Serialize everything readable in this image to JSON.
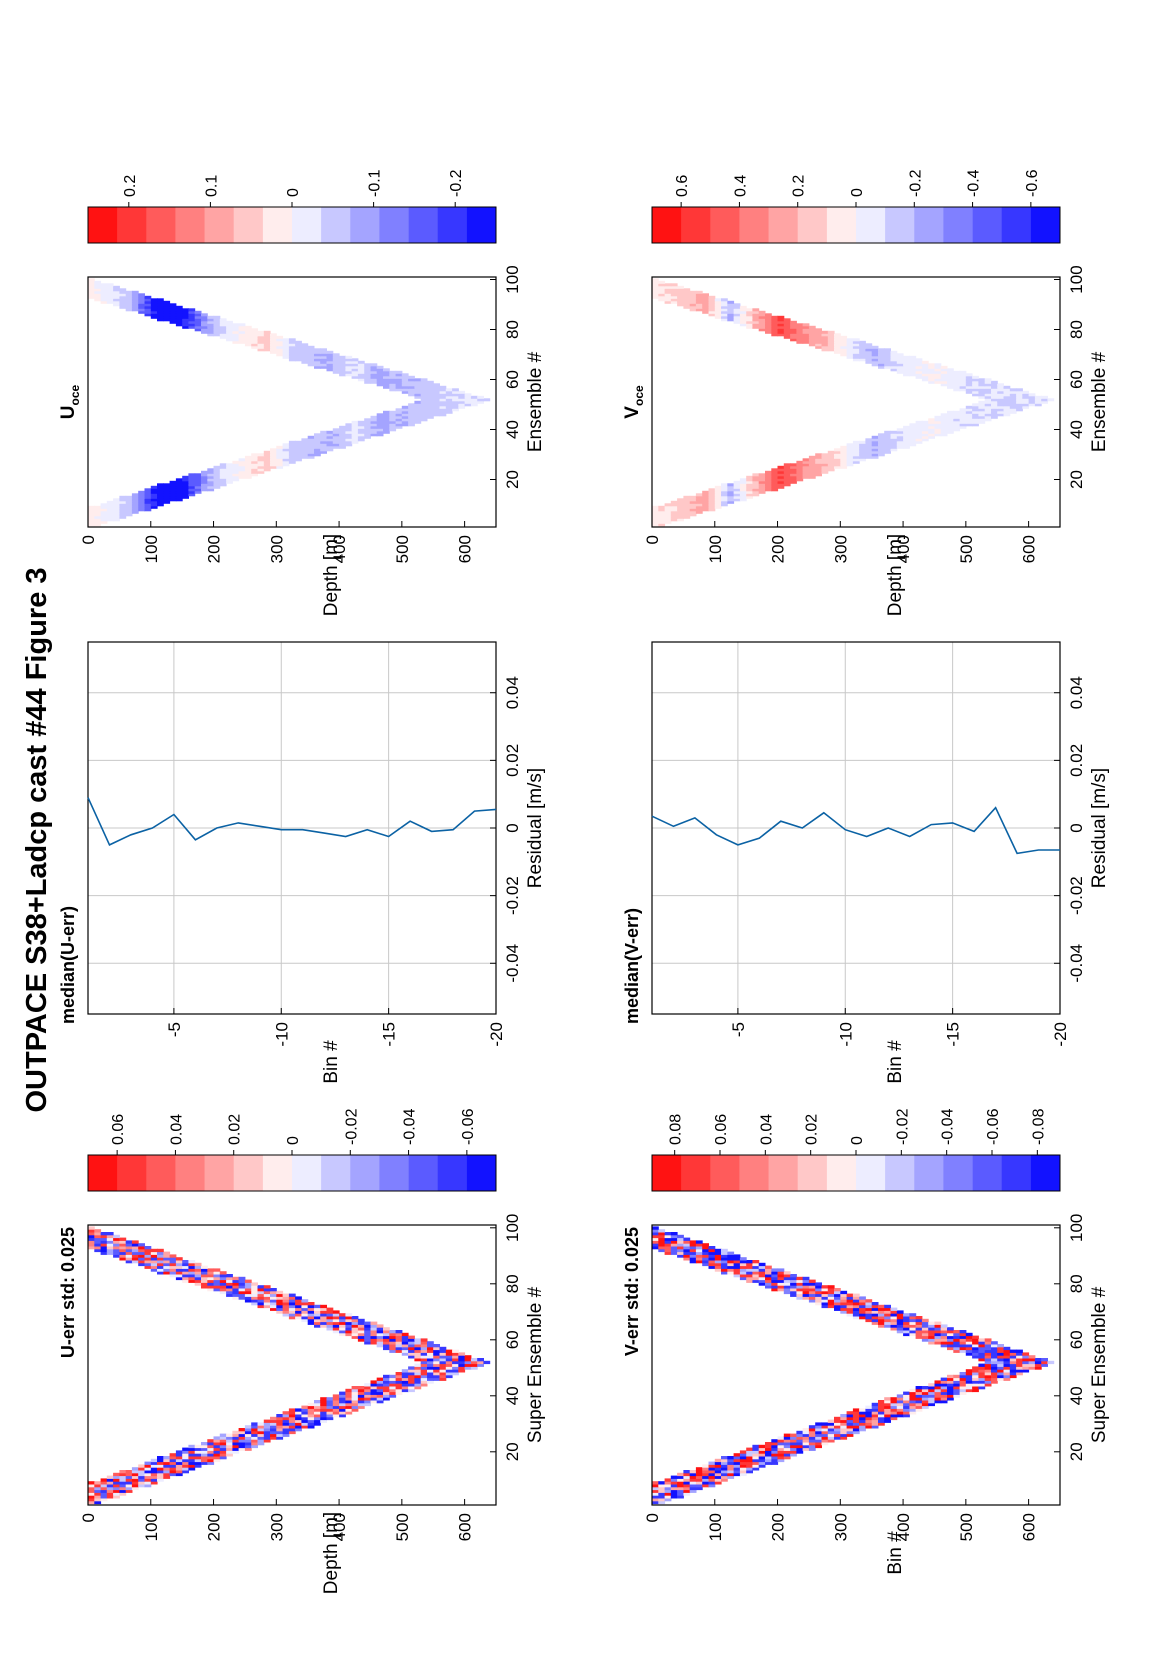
{
  "figure": {
    "title": "OUTPACE S38+Ladcp cast #44  Figure 3",
    "orientation": "rotated 90° counter-clockwise (landscape figure shown on portrait page)"
  },
  "chart_data": [
    {
      "id": "u_err",
      "type": "heatmap",
      "title": "U-err std: 0.025",
      "xlabel": "Super Ensemble #",
      "ylabel": "Depth [m]",
      "xlim": [
        1,
        101
      ],
      "ylim": [
        0,
        650
      ],
      "xticks": [
        "20",
        "40",
        "60",
        "80",
        "100"
      ],
      "yticks": [
        "0",
        "100",
        "200",
        "300",
        "400",
        "500",
        "600"
      ],
      "profile": {
        "turn_x": 52,
        "max_depth": 630,
        "band_width": 100
      },
      "noise_amplitude": 0.06,
      "colorbar": {
        "labels": [
          "0.06",
          "0.04",
          "0.02",
          "0",
          "-0.02",
          "-0.04",
          "-0.06"
        ],
        "range": [
          -0.07,
          0.07
        ]
      }
    },
    {
      "id": "median_u",
      "type": "line",
      "title": "median(U-err)",
      "xlabel": "Residual [m/s]",
      "ylabel": "Bin #",
      "xlim": [
        -0.055,
        0.055
      ],
      "ylim": [
        -20,
        -1
      ],
      "xticks": [
        "-0.04",
        "-0.02",
        "0",
        "0.02",
        "0.04"
      ],
      "yticks": [
        "-5",
        "-10",
        "-15",
        "-20"
      ],
      "grid": true,
      "series": [
        {
          "bin": [
            -1,
            -2,
            -3,
            -4,
            -5,
            -6,
            -7,
            -8,
            -9,
            -10,
            -11,
            -12,
            -13,
            -14,
            -15,
            -16,
            -17,
            -18,
            -19,
            -20
          ],
          "residual": [
            0.009,
            -0.005,
            -0.002,
            0.0,
            0.004,
            -0.0035,
            0.0,
            0.0015,
            0.0005,
            -0.0005,
            -0.0005,
            -0.0015,
            -0.0025,
            -0.0005,
            -0.0025,
            0.002,
            -0.001,
            -0.0005,
            0.005,
            0.0055
          ]
        }
      ]
    },
    {
      "id": "u_oce",
      "type": "heatmap",
      "title": "U",
      "title_subscript": "oce",
      "xlabel": "Ensemble #",
      "ylabel": "Depth [m]",
      "xlim": [
        1,
        101
      ],
      "ylim": [
        0,
        650
      ],
      "xticks": [
        "20",
        "40",
        "60",
        "80",
        "100"
      ],
      "yticks": [
        "0",
        "100",
        "200",
        "300",
        "400",
        "500",
        "600"
      ],
      "profile": {
        "turn_x": 52,
        "max_depth": 630,
        "band_width": 100
      },
      "depth_profile": [
        [
          0,
          0.02
        ],
        [
          60,
          -0.05
        ],
        [
          100,
          -0.22
        ],
        [
          140,
          -0.26
        ],
        [
          180,
          -0.1
        ],
        [
          200,
          -0.05
        ],
        [
          250,
          0.02
        ],
        [
          280,
          0.05
        ],
        [
          320,
          -0.05
        ],
        [
          380,
          -0.07
        ],
        [
          420,
          -0.03
        ],
        [
          460,
          -0.08
        ],
        [
          520,
          -0.06
        ],
        [
          580,
          -0.04
        ],
        [
          630,
          -0.03
        ]
      ],
      "colorbar": {
        "labels": [
          "0.2",
          "0.1",
          "0",
          "-0.1",
          "-0.2"
        ],
        "range": [
          -0.25,
          0.25
        ]
      }
    },
    {
      "id": "v_err",
      "type": "heatmap",
      "title": "V-err std: 0.025",
      "xlabel": "Super Ensemble #",
      "ylabel": "Bin #",
      "xlim": [
        1,
        101
      ],
      "ylim": [
        0,
        650
      ],
      "xticks": [
        "20",
        "40",
        "60",
        "80",
        "100"
      ],
      "yticks": [
        "0",
        "100",
        "200",
        "300",
        "400",
        "500",
        "600"
      ],
      "profile": {
        "turn_x": 52,
        "max_depth": 630,
        "band_width": 100
      },
      "noise_amplitude": 0.08,
      "colorbar": {
        "labels": [
          "0.08",
          "0.06",
          "0.04",
          "0.02",
          "0",
          "-0.02",
          "-0.04",
          "-0.06",
          "-0.08"
        ],
        "range": [
          -0.09,
          0.09
        ]
      }
    },
    {
      "id": "median_v",
      "type": "line",
      "title": "median(V-err)",
      "xlabel": "Residual [m/s]",
      "ylabel": "Bin #",
      "xlim": [
        -0.055,
        0.055
      ],
      "ylim": [
        -20,
        -1
      ],
      "xticks": [
        "-0.04",
        "-0.02",
        "0",
        "0.02",
        "0.04"
      ],
      "yticks": [
        "-5",
        "-10",
        "-15",
        "-20"
      ],
      "grid": true,
      "series": [
        {
          "bin": [
            -1,
            -2,
            -3,
            -4,
            -5,
            -6,
            -7,
            -8,
            -9,
            -10,
            -11,
            -12,
            -13,
            -14,
            -15,
            -16,
            -17,
            -18,
            -19,
            -20
          ],
          "residual": [
            0.0035,
            0.0005,
            0.003,
            -0.002,
            -0.005,
            -0.003,
            0.002,
            0.0,
            0.0045,
            -0.0005,
            -0.0025,
            0.0,
            -0.0025,
            0.001,
            0.0015,
            -0.001,
            0.006,
            -0.0075,
            -0.0065,
            -0.0065
          ]
        }
      ]
    },
    {
      "id": "v_oce",
      "type": "heatmap",
      "title": "V",
      "title_subscript": "oce",
      "xlabel": "Ensemble #",
      "ylabel": "Depth [m]",
      "xlim": [
        1,
        101
      ],
      "ylim": [
        0,
        650
      ],
      "xticks": [
        "20",
        "40",
        "60",
        "80",
        "100"
      ],
      "yticks": [
        "0",
        "100",
        "200",
        "300",
        "400",
        "500",
        "600"
      ],
      "profile": {
        "turn_x": 52,
        "max_depth": 630,
        "band_width": 100
      },
      "depth_profile": [
        [
          0,
          0.05
        ],
        [
          50,
          0.15
        ],
        [
          80,
          0.25
        ],
        [
          120,
          -0.2
        ],
        [
          160,
          0.2
        ],
        [
          200,
          0.5
        ],
        [
          240,
          0.3
        ],
        [
          280,
          0.15
        ],
        [
          320,
          -0.1
        ],
        [
          350,
          -0.2
        ],
        [
          400,
          -0.05
        ],
        [
          450,
          0.0
        ],
        [
          500,
          -0.1
        ],
        [
          560,
          -0.1
        ],
        [
          630,
          -0.08
        ]
      ],
      "colorbar": {
        "labels": [
          "0.6",
          "0.4",
          "0.2",
          "0",
          "-0.2",
          "-0.4",
          "-0.6"
        ],
        "range": [
          -0.7,
          0.7
        ]
      }
    }
  ]
}
